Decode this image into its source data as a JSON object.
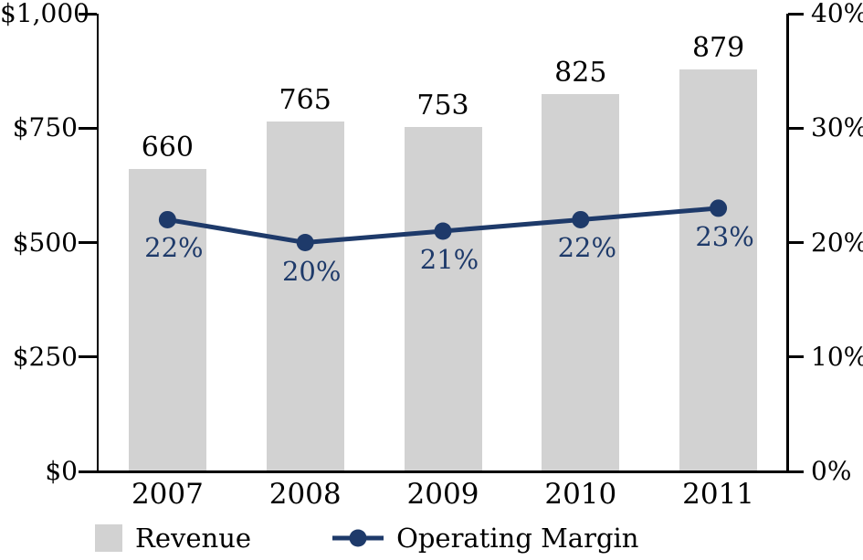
{
  "chart_data": {
    "type": "bar",
    "subtype": "combo-bar-line-dual-axis",
    "categories": [
      "2007",
      "2008",
      "2009",
      "2010",
      "2011"
    ],
    "series": [
      {
        "name": "Revenue",
        "type": "bar",
        "axis": "left",
        "values": [
          660,
          765,
          753,
          825,
          879
        ],
        "data_labels": [
          "660",
          "765",
          "753",
          "825",
          "879"
        ],
        "color": "#d2d2d2"
      },
      {
        "name": "Operating Margin",
        "type": "line",
        "axis": "right",
        "values": [
          22,
          20,
          21,
          22,
          23
        ],
        "data_labels": [
          "22%",
          "20%",
          "21%",
          "22%",
          "23%"
        ],
        "color": "#1e3a6a"
      }
    ],
    "left_axis": {
      "tick_labels": [
        "$1,000",
        "$750",
        "$500",
        "$250",
        "$0"
      ],
      "tick_values": [
        1000,
        750,
        500,
        250,
        0
      ],
      "min": 0,
      "max": 1000
    },
    "right_axis": {
      "tick_labels": [
        "40%",
        "30%",
        "20%",
        "10%",
        "0%"
      ],
      "tick_values": [
        40,
        30,
        20,
        10,
        0
      ],
      "min": 0,
      "max": 40
    },
    "title": "",
    "xlabel": "",
    "ylabel": "",
    "grid": false,
    "legend_position": "bottom"
  },
  "colors": {
    "bar_fill": "#d2d2d2",
    "line": "#1e3a6a",
    "axis": "#000000",
    "text": "#000000",
    "background": "#ffffff"
  }
}
